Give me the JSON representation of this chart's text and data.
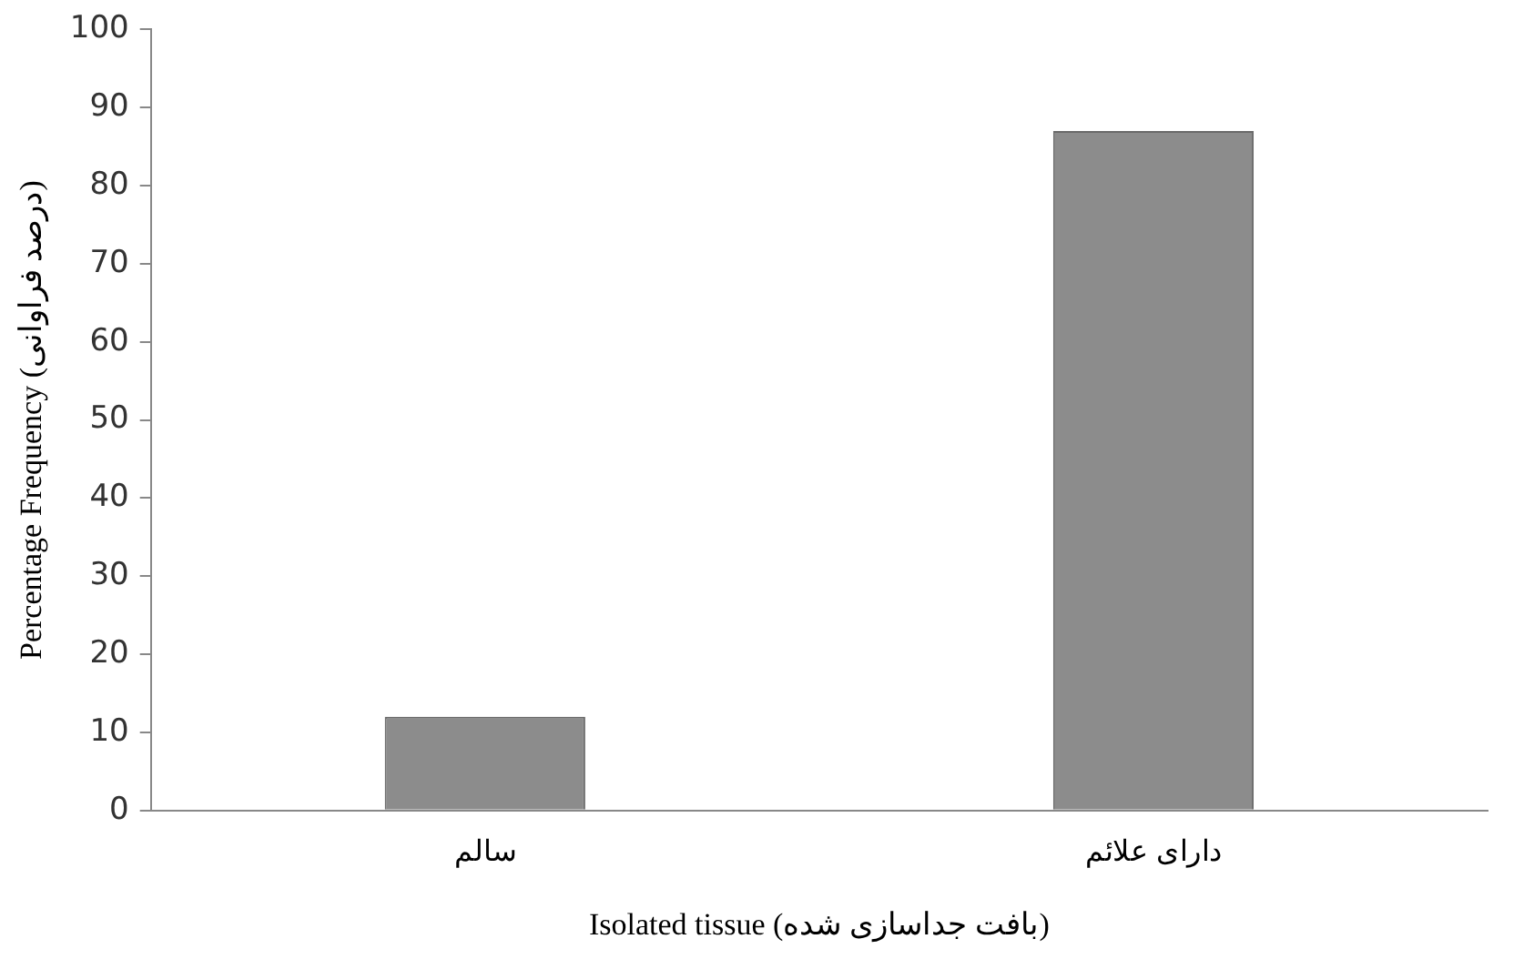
{
  "chart_data": {
    "type": "bar",
    "categories": [
      "سالم",
      "دارای علائم"
    ],
    "values": [
      12,
      87
    ],
    "color": "#8c8c8c",
    "xlabel": "Isolated tissue (بافت جداسازی شده)",
    "ylabel": "Percentage Frequency (درصد فراوانی)",
    "ylim": [
      0,
      100
    ],
    "yticks": [
      0,
      10,
      20,
      30,
      40,
      50,
      60,
      70,
      80,
      90,
      100
    ],
    "grid": false,
    "legend": false
  }
}
